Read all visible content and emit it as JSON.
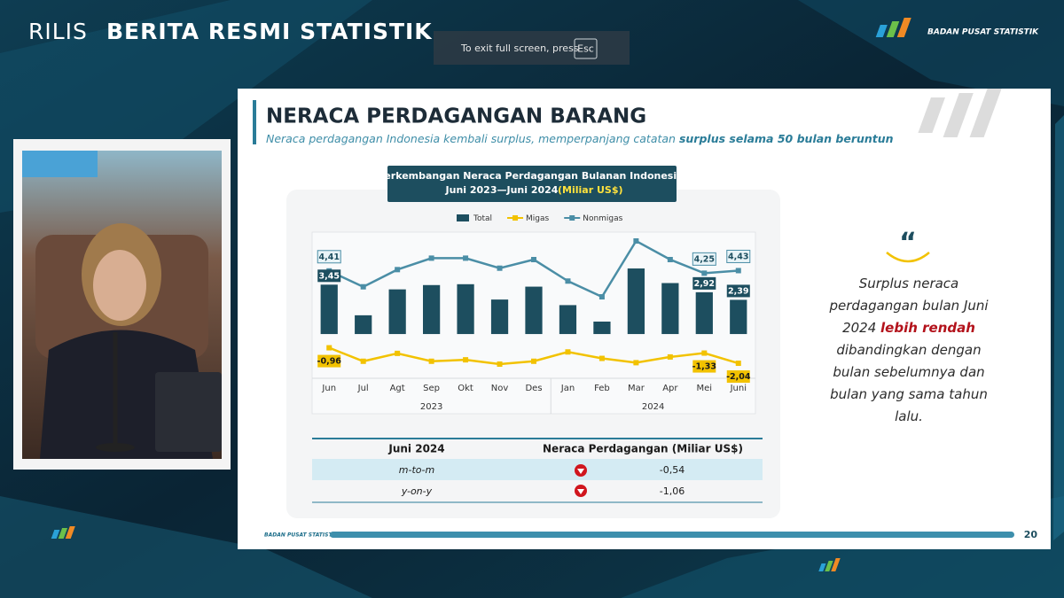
{
  "header": {
    "title_light": "RILIS",
    "title_bold": "BERITA RESMI STATISTIK",
    "logo_text": "BADAN PUSAT STATISTIK"
  },
  "fullscreen_notice": {
    "text": "To exit full screen, press",
    "key": "Esc"
  },
  "slide": {
    "title": "NERACA PERDAGANGAN BARANG",
    "subtitle": "Neraca perdagangan Indonesia kembali surplus, memperpanjang catatan",
    "subtitle_bold": "surplus selama 50 bulan beruntun",
    "quote": [
      "Surplus neraca perdagangan bulan Juni 2024",
      "lebih rendah",
      "dibandingkan dengan bulan sebelumnya dan bulan yang sama tahun lalu."
    ],
    "table": {
      "header": [
        "Juni 2024",
        "Neraca Perdagangan (Miliar US$)"
      ],
      "rows": [
        [
          "m-to-m",
          "-0,54"
        ],
        [
          "y-on-y",
          "-1,06"
        ]
      ]
    },
    "footer_logo": "BADAN PUSAT STATISTIK",
    "page_number": 20
  },
  "chart_data": {
    "type": "combo",
    "title": "Perkembangan Neraca Perdagangan Bulanan Indonesia,",
    "title_line2": "Juni 2023—Juni 2024",
    "title_unit": "(Miliar US$)",
    "categories": [
      "Jun",
      "Jul",
      "Agt",
      "Sep",
      "Okt",
      "Nov",
      "Des",
      "Jan",
      "Feb",
      "Mar",
      "Apr",
      "Mei",
      "Juni"
    ],
    "groups": [
      {
        "label": "2023",
        "from": 0,
        "to": 6
      },
      {
        "label": "2024",
        "from": 7,
        "to": 12
      }
    ],
    "series": [
      {
        "name": "Total",
        "type": "bar",
        "color": "#1d4e5f",
        "values": [
          3.45,
          1.31,
          3.12,
          3.42,
          3.48,
          2.41,
          3.31,
          2.02,
          0.87,
          4.58,
          3.56,
          2.92,
          2.39
        ],
        "value_labels": [
          "3,45",
          null,
          null,
          null,
          null,
          null,
          null,
          null,
          null,
          null,
          null,
          "2,92",
          "2,39"
        ]
      },
      {
        "name": "Migas",
        "type": "line",
        "color": "#f2c200",
        "values": [
          -0.96,
          -1.9,
          -1.35,
          -1.9,
          -1.8,
          -2.1,
          -1.9,
          -1.25,
          -1.7,
          -2.0,
          -1.6,
          -1.33,
          -2.04
        ],
        "value_labels": [
          "-0,96",
          null,
          null,
          null,
          null,
          null,
          null,
          null,
          null,
          null,
          null,
          "-1,33",
          "-2,04"
        ]
      },
      {
        "name": "Nonmigas",
        "type": "line",
        "color": "#4b8ea6",
        "values": [
          4.41,
          3.3,
          4.5,
          5.3,
          5.3,
          4.6,
          5.2,
          3.7,
          2.6,
          6.5,
          5.2,
          4.25,
          4.43
        ],
        "value_labels": [
          "4,41",
          null,
          null,
          null,
          null,
          null,
          null,
          null,
          null,
          null,
          null,
          "4,25",
          "4,43"
        ]
      }
    ],
    "legend": "top"
  }
}
